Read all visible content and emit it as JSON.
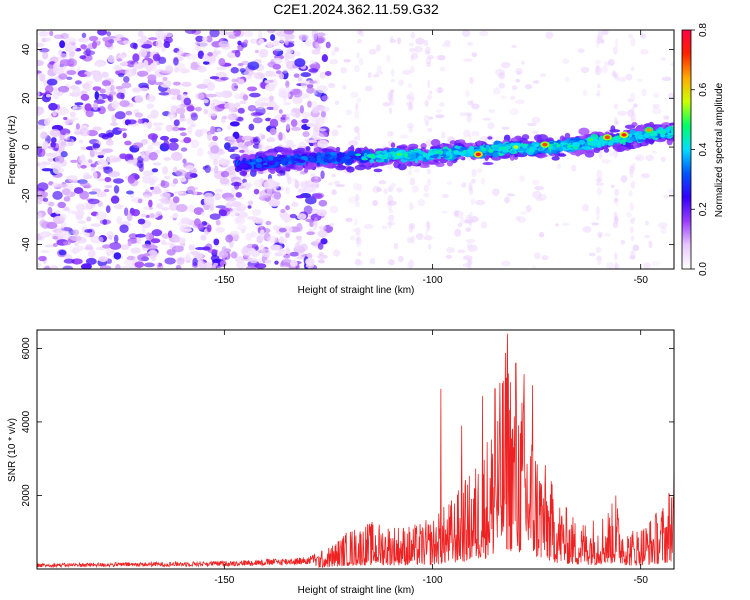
{
  "title": "C2E1.2024.362.11.59.G32",
  "chart_data": [
    {
      "type": "heatmap",
      "xlabel": "Height of straight line (km)",
      "ylabel": "Frequency (Hz)",
      "xlim": [
        -195,
        -42
      ],
      "ylim": [
        -50,
        48
      ],
      "xticks": [
        -150,
        -100,
        -50
      ],
      "yticks": [
        -40,
        -20,
        0,
        20,
        40
      ],
      "xtick_labels": [
        "-150",
        "-100",
        "-50"
      ],
      "ytick_labels": [
        "-40",
        "-20",
        "0",
        "20",
        "40"
      ],
      "colorbar": {
        "label": "Normalized spectral amplitude",
        "range": [
          0,
          0.8
        ],
        "ticks": [
          0,
          0.2,
          0.4,
          0.6,
          0.8
        ],
        "tick_labels": [
          "0.0",
          "0.2",
          "0.4",
          "0.6",
          "0.8"
        ],
        "colors": [
          "#ffffff",
          "#e8c8ff",
          "#9a3cff",
          "#3300ff",
          "#0055ff",
          "#00ddff",
          "#00ff66",
          "#ccff00",
          "#ffaa00",
          "#ff2200",
          "#ff0044"
        ]
      },
      "band_ridge": {
        "x": [
          -145,
          -130,
          -115,
          -100,
          -85,
          -70,
          -55,
          -45
        ],
        "y": [
          -7,
          -5,
          -4,
          -3,
          -1,
          0,
          3,
          6
        ]
      },
      "hot_spots": [
        {
          "x": -89,
          "y": -3,
          "value": 0.75
        },
        {
          "x": -73,
          "y": 1,
          "value": 0.7
        },
        {
          "x": -58,
          "y": 4,
          "value": 0.7
        },
        {
          "x": -54,
          "y": 5,
          "value": 0.72
        },
        {
          "x": -48,
          "y": 7,
          "value": 0.65
        },
        {
          "x": -108,
          "y": -3,
          "value": 0.5
        },
        {
          "x": -80,
          "y": 0,
          "value": 0.55
        },
        {
          "x": -62,
          "y": 3,
          "value": 0.5
        }
      ]
    },
    {
      "type": "line",
      "xlabel": "Height of straight line (km)",
      "ylabel": "SNR (10 * v/v)",
      "xlim": [
        -195,
        -42
      ],
      "ylim": [
        0,
        6500
      ],
      "xticks": [
        -150,
        -100,
        -50
      ],
      "yticks": [
        2000,
        4000,
        6000
      ],
      "xtick_labels": [
        "-150",
        "-100",
        "-50"
      ],
      "ytick_labels": [
        "2000",
        "4000",
        "6000"
      ],
      "color": "#ee2222",
      "envelope": {
        "x": [
          -195,
          -180,
          -165,
          -150,
          -140,
          -130,
          -125,
          -120,
          -115,
          -110,
          -105,
          -100,
          -95,
          -90,
          -85,
          -82,
          -80,
          -78,
          -75,
          -70,
          -65,
          -60,
          -56,
          -53,
          -50,
          -47,
          -44,
          -42
        ],
        "y": [
          150,
          170,
          190,
          220,
          270,
          330,
          600,
          1100,
          1300,
          1250,
          1200,
          1400,
          2000,
          2800,
          4300,
          6400,
          5300,
          4800,
          3500,
          2000,
          1300,
          1500,
          1900,
          1100,
          1200,
          1500,
          1900,
          2900
        ]
      },
      "peaks": [
        {
          "x": -82,
          "y": 6400
        },
        {
          "x": -80,
          "y": 5600
        },
        {
          "x": -85,
          "y": 4900
        },
        {
          "x": -78,
          "y": 5300
        },
        {
          "x": -98,
          "y": 4900
        },
        {
          "x": -88,
          "y": 4700
        },
        {
          "x": -76,
          "y": 5000
        },
        {
          "x": -93,
          "y": 3900
        },
        {
          "x": -56,
          "y": 2000
        },
        {
          "x": -42,
          "y": 2900
        }
      ]
    }
  ]
}
